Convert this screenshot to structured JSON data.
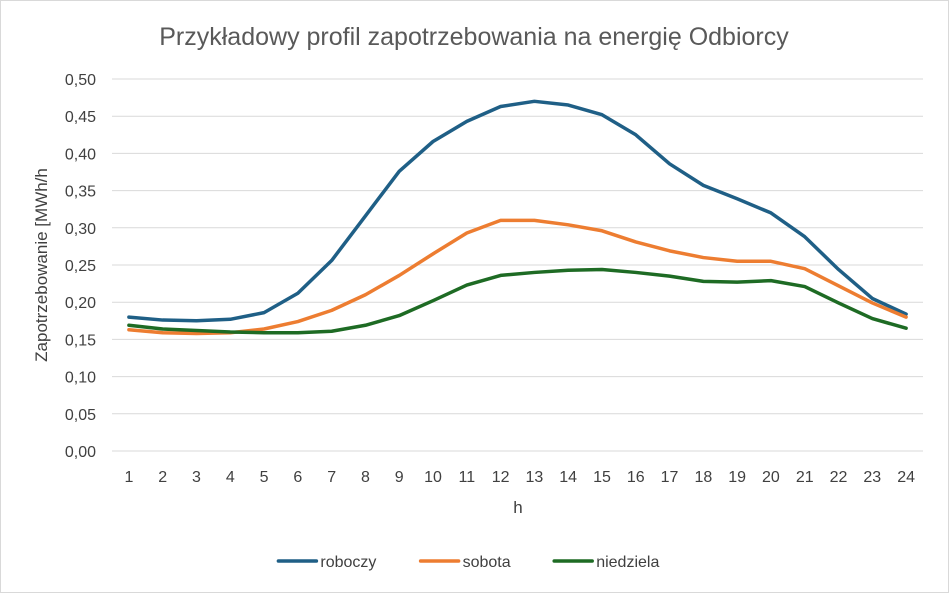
{
  "chart_data": {
    "type": "line",
    "title": "Przykładowy profil zapotrzebowania na energię Odbiorcy",
    "xlabel": "h",
    "ylabel": "Zapotrzebowanie [MWh/h",
    "categories": [
      "1",
      "2",
      "3",
      "4",
      "5",
      "6",
      "7",
      "8",
      "9",
      "10",
      "11",
      "12",
      "13",
      "14",
      "15",
      "16",
      "17",
      "18",
      "19",
      "20",
      "21",
      "22",
      "23",
      "24"
    ],
    "y_ticks": [
      "0,00",
      "0,05",
      "0,10",
      "0,15",
      "0,20",
      "0,25",
      "0,30",
      "0,35",
      "0,40",
      "0,45",
      "0,50"
    ],
    "ylim": [
      0,
      0.5
    ],
    "y_step": 0.05,
    "grid": true,
    "legend_position": "bottom",
    "series": [
      {
        "name": "roboczy",
        "color": "#1f5f86",
        "values": [
          0.18,
          0.176,
          0.175,
          0.177,
          0.186,
          0.212,
          0.256,
          0.316,
          0.376,
          0.416,
          0.443,
          0.463,
          0.47,
          0.465,
          0.452,
          0.425,
          0.386,
          0.357,
          0.339,
          0.32,
          0.288,
          0.244,
          0.205,
          0.184
        ]
      },
      {
        "name": "sobota",
        "color": "#ed7d31",
        "values": [
          0.163,
          0.159,
          0.158,
          0.159,
          0.164,
          0.174,
          0.189,
          0.21,
          0.236,
          0.265,
          0.293,
          0.31,
          0.31,
          0.304,
          0.296,
          0.281,
          0.269,
          0.26,
          0.255,
          0.255,
          0.245,
          0.222,
          0.199,
          0.18
        ]
      },
      {
        "name": "niedziela",
        "color": "#1e6b24",
        "values": [
          0.169,
          0.164,
          0.162,
          0.16,
          0.159,
          0.159,
          0.161,
          0.169,
          0.182,
          0.202,
          0.223,
          0.236,
          0.24,
          0.243,
          0.244,
          0.24,
          0.235,
          0.228,
          0.227,
          0.229,
          0.221,
          0.199,
          0.178,
          0.165
        ]
      }
    ]
  }
}
